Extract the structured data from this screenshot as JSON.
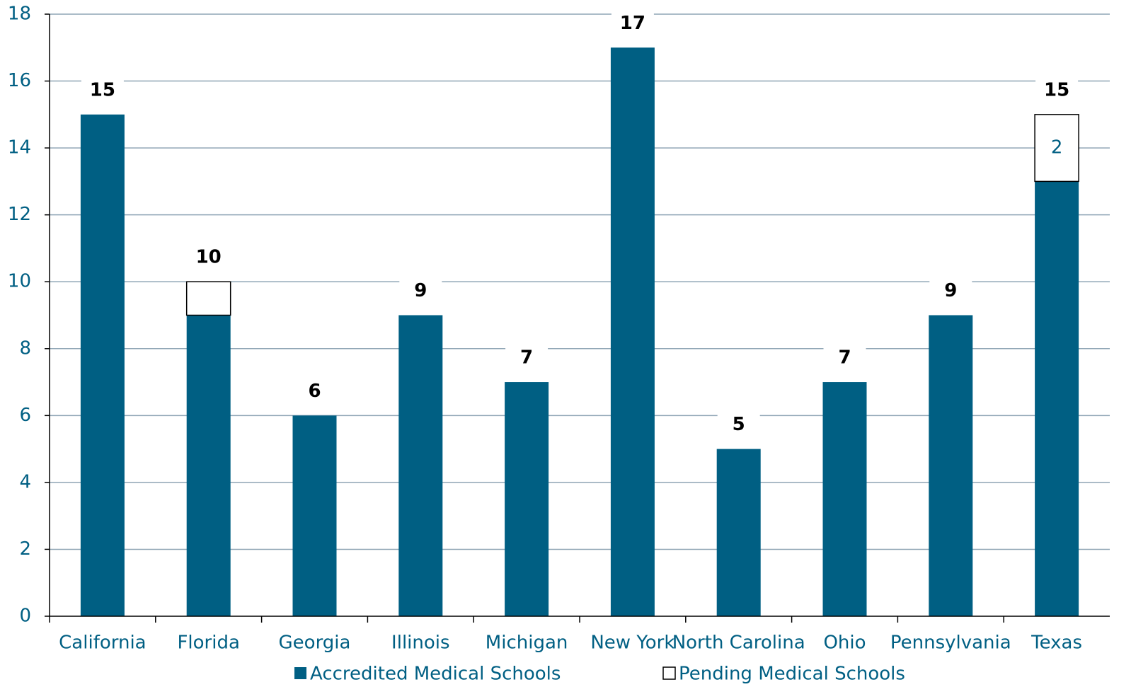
{
  "chart_data": {
    "type": "stacked_bar",
    "categories": [
      "California",
      "Florida",
      "Georgia",
      "Illinois",
      "Michigan",
      "New York",
      "North Carolina",
      "Ohio",
      "Pennsylvania",
      "Texas"
    ],
    "series": [
      {
        "name": "Accredited Medical Schools",
        "color": "#005f83",
        "values": [
          15,
          9,
          6,
          9,
          7,
          17,
          5,
          7,
          9,
          13
        ]
      },
      {
        "name": "Pending Medical Schools",
        "color": "#ffffff",
        "values": [
          0,
          1,
          0,
          0,
          0,
          0,
          0,
          0,
          0,
          2
        ],
        "value_labels": [
          null,
          null,
          null,
          null,
          null,
          null,
          null,
          null,
          null,
          "2"
        ]
      }
    ],
    "totals": [
      15,
      10,
      6,
      9,
      7,
      17,
      5,
      7,
      9,
      15
    ],
    "ylim": [
      0,
      18
    ],
    "yticks": [
      0,
      2,
      4,
      6,
      8,
      10,
      12,
      14,
      16,
      18
    ],
    "grid": true,
    "legend": "bottom"
  }
}
